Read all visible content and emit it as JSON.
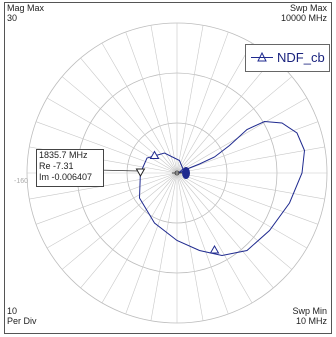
{
  "chart_data": {
    "type": "polar",
    "corner_labels": {
      "top_left": [
        "Mag Max",
        "30"
      ],
      "top_right": [
        "Swp Max",
        "10000 MHz"
      ],
      "bottom_left": [
        "10",
        "Per Div"
      ],
      "bottom_right": [
        "Swp Min",
        "10 MHz"
      ]
    },
    "radial": {
      "max": 30,
      "per_div": 10,
      "divisions": 3
    },
    "angle_tick_labels": [
      "-160"
    ],
    "series": [
      {
        "name": "NDF_cb",
        "color": "#1f2a8f",
        "points_re_im": [
          [
            0.5,
            0.0
          ],
          [
            2.0,
            0.8
          ],
          [
            4.5,
            1.8
          ],
          [
            7.5,
            3.2
          ],
          [
            10.5,
            5.5
          ],
          [
            14.0,
            8.7
          ],
          [
            17.5,
            10.3
          ],
          [
            21.0,
            10.0
          ],
          [
            24.0,
            8.0
          ],
          [
            25.5,
            4.5
          ],
          [
            25.0,
            0.0
          ],
          [
            22.5,
            -6.0
          ],
          [
            18.5,
            -11.5
          ],
          [
            14.0,
            -15.5
          ],
          [
            9.0,
            -16.5
          ],
          [
            4.5,
            -15.5
          ],
          [
            0.0,
            -13.5
          ],
          [
            -4.5,
            -10.0
          ],
          [
            -7.5,
            -5.0
          ],
          [
            -7.31,
            -0.0064
          ],
          [
            -6.0,
            3.0
          ],
          [
            -2.5,
            4.0
          ],
          [
            0.5,
            2.5
          ],
          [
            1.2,
            0.8
          ],
          [
            0.3,
            0.0
          ]
        ],
        "triangle_markers_re_im": [
          [
            -4.5,
            3.5
          ],
          [
            7.5,
            -15.4
          ]
        ]
      }
    ],
    "marker": {
      "label_lines": [
        "1835.7 MHz",
        "Re -7.31",
        "Im -0.006407"
      ],
      "re": -7.31,
      "im": -0.006407
    },
    "grid": true
  }
}
